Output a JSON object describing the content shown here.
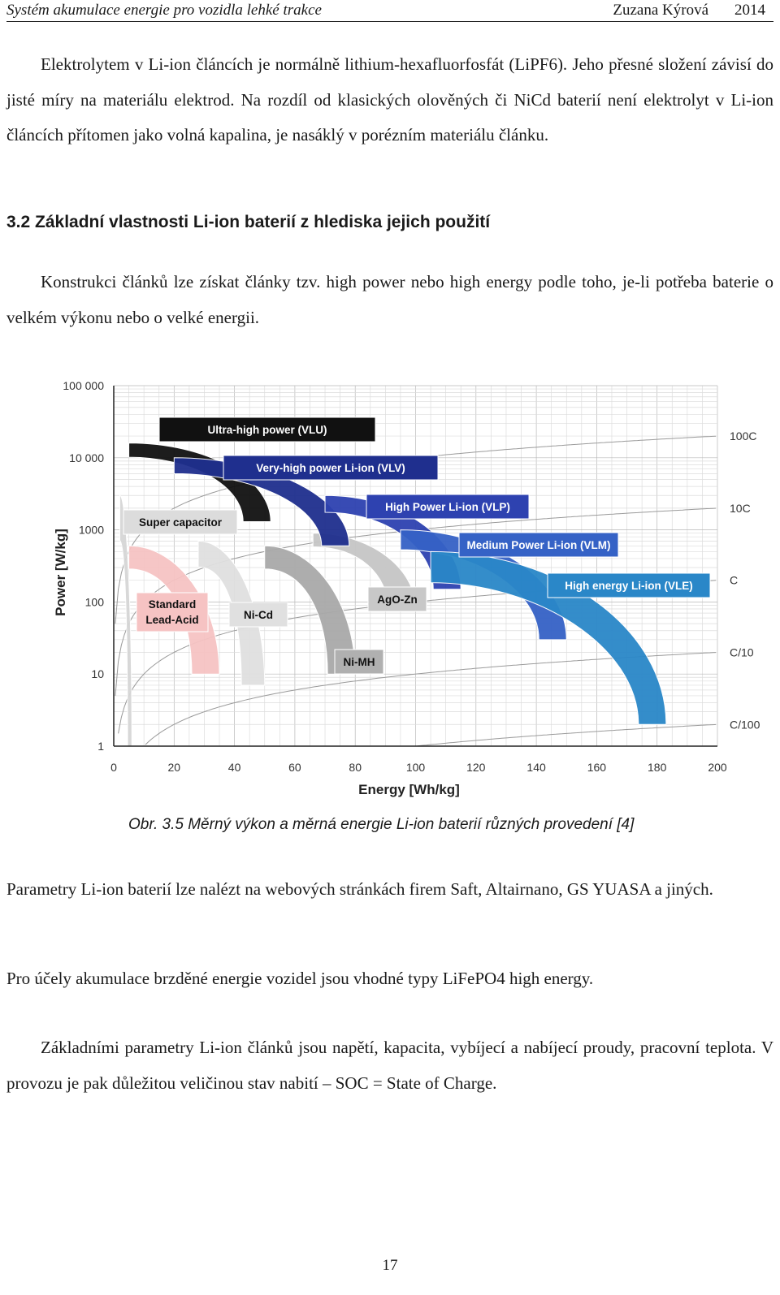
{
  "header": {
    "title": "Systém akumulace energie pro vozidla lehké trakce",
    "author": "Zuzana Kýrová",
    "year": "2014"
  },
  "paragraphs": {
    "p1": "Elektrolytem v Li-ion článcích je normálně lithium-hexafluorfosfát (LiPF6). Jeho přesné složení závisí do jisté míry na materiálu elektrod. Na rozdíl od klasických olověných či NiCd baterií není elektrolyt v Li-ion článcích přítomen jako volná kapalina, je nasáklý v porézním materiálu článku.",
    "heading": "3.2 Základní vlastnosti Li-ion baterií z hlediska jejich použití",
    "p2": "Konstrukci článků lze získat články tzv. high power nebo high energy podle toho, je-li potřeba baterie o velkém výkonu nebo o velké energii.",
    "caption": "Obr. 3.5  Měrný výkon a měrná energie Li-ion baterií různých provedení [4]",
    "p3": "Parametry Li-ion baterií lze nalézt na webových stránkách firem Saft, Altairnano, GS YUASA a jiných.",
    "p4": "Pro účely akumulace brzděné energie vozidel jsou vhodné typy LiFePO4 high energy.",
    "p5": "Základními parametry Li-ion článků jsou napětí, kapacita, vybíjecí a nabíjecí proudy, pracovní teplota. V provozu je pak důležitou veličinou stav nabití – SOC = State of Charge."
  },
  "page_number": "17",
  "chart_data": {
    "type": "area",
    "xlabel": "Energy [Wh/kg]",
    "ylabel": "Power [W/kg]",
    "xlim": [
      0,
      200
    ],
    "ylim": [
      1,
      100000
    ],
    "y_scale": "log",
    "grid": true,
    "x_ticks": [
      "0",
      "20",
      "40",
      "60",
      "80",
      "100",
      "120",
      "140",
      "160",
      "180",
      "200"
    ],
    "y_ticks": [
      "1",
      "10",
      "100",
      "1000",
      "10 000",
      "100 000"
    ],
    "c_rate_lines": [
      {
        "label": "100C",
        "rate": 100
      },
      {
        "label": "10C",
        "rate": 10
      },
      {
        "label": "C",
        "rate": 1
      },
      {
        "label": "C/10",
        "rate": 0.1
      },
      {
        "label": "C/100",
        "rate": 0.01
      }
    ],
    "series": [
      {
        "name": "Super capacitor",
        "color": "#d6d6d6",
        "energy_range": [
          2,
          6
        ],
        "power_range": [
          1,
          3000
        ]
      },
      {
        "name": "Standard Lead-Acid",
        "color": "#f6c3c3",
        "energy_range": [
          5,
          35
        ],
        "power_range": [
          10,
          600
        ]
      },
      {
        "name": "Ni-Cd",
        "color": "#e0e0e0",
        "energy_range": [
          28,
          50
        ],
        "power_range": [
          7,
          700
        ]
      },
      {
        "name": "Ni-MH",
        "color": "#a9a9a9",
        "energy_range": [
          50,
          80
        ],
        "power_range": [
          10,
          600
        ]
      },
      {
        "name": "AgO-Zn",
        "color": "#c6c6c6",
        "energy_range": [
          66,
          100
        ],
        "power_range": [
          80,
          900
        ]
      },
      {
        "name": "Ultra-high power (VLU)",
        "color": "#111111",
        "energy_range": [
          5,
          52
        ],
        "power_range": [
          1300,
          16000
        ]
      },
      {
        "name": "Very-high power Li-ion (VLV)",
        "color": "#1f2f8e",
        "energy_range": [
          20,
          78
        ],
        "power_range": [
          600,
          10000
        ]
      },
      {
        "name": "High Power Li-ion (VLP)",
        "color": "#2e42b0",
        "energy_range": [
          70,
          115
        ],
        "power_range": [
          150,
          3000
        ]
      },
      {
        "name": "Medium Power Li-ion (VLM)",
        "color": "#3562c6",
        "energy_range": [
          95,
          150
        ],
        "power_range": [
          30,
          1000
        ]
      },
      {
        "name": "High energy Li-ion (VLE)",
        "color": "#2a87c8",
        "energy_range": [
          105,
          183
        ],
        "power_range": [
          2,
          500
        ]
      }
    ]
  }
}
